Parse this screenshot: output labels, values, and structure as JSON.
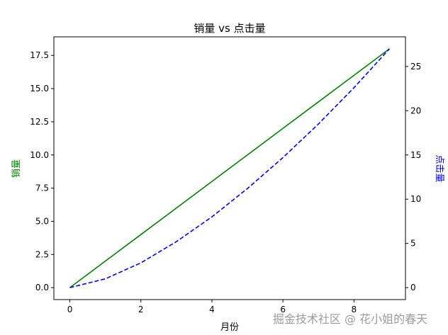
{
  "chart_data": {
    "type": "line",
    "title": "销量 vs 点击量",
    "xlabel": "月份",
    "ylabel": "销量",
    "ylabel_right": "点击量",
    "x": [
      0,
      1,
      2,
      3,
      4,
      5,
      6,
      7,
      8,
      9
    ],
    "xlim": [
      -0.45,
      9.45
    ],
    "ylim_left": [
      -0.9,
      18.9
    ],
    "ylim_right": [
      -1.35,
      28.35
    ],
    "x_ticks": [
      "0",
      "2",
      "4",
      "6",
      "8"
    ],
    "y_left_ticks": [
      "0.0",
      "2.5",
      "5.0",
      "7.5",
      "10.0",
      "12.5",
      "15.0",
      "17.5"
    ],
    "y_right_ticks": [
      "0",
      "5",
      "10",
      "15",
      "20",
      "25"
    ],
    "grid": false,
    "series": [
      {
        "axis": "left",
        "color": "#008000",
        "style": "solid",
        "values": [
          0,
          2,
          4,
          6,
          8,
          10,
          12,
          14,
          16,
          18
        ]
      },
      {
        "axis": "right",
        "color": "#0000ff",
        "style": "dashed",
        "values": [
          0,
          1,
          2.8,
          5.2,
          8.0,
          11.2,
          14.7,
          18.5,
          22.6,
          27
        ]
      }
    ],
    "colors": {
      "left_axis_label": "#008000",
      "right_axis_label": "#0000ff"
    }
  },
  "watermark": "掘金技术社区 @ 花小姐的春天"
}
